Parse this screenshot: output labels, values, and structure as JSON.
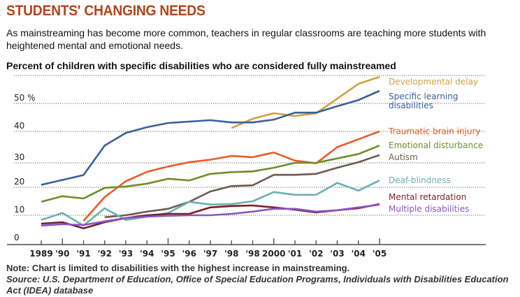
{
  "header": {
    "title": "STUDENTS' CHANGING NEEDS",
    "subtitle": "As mainstreaming has become more common, teachers in regular classrooms are teaching more students with heightened mental and emotional needs.",
    "chart_title": "Percent of children with specific disabilities who are considered fully mainstreamed"
  },
  "footer": {
    "note": "Note: Chart is limited to disabilities with the highest increase in mainstreaming.",
    "source": "Source: U.S. Department of Education, Office of Special Education Programs, Individuals with Disabilities Education Act (IDEA) database"
  },
  "chart_data": {
    "type": "line",
    "title": "Percent of children with specific disabilities who are considered fully mainstreamed",
    "xlabel": "",
    "ylabel": "",
    "categories": [
      "1989",
      "'90",
      "'91",
      "'92",
      "'93",
      "'94",
      "'95",
      "'96",
      "'97",
      "'98",
      "'98",
      "2000",
      "'01",
      "'02",
      "'03",
      "'04",
      "'05"
    ],
    "y_ticks": [
      {
        "value": 0,
        "label": "0"
      },
      {
        "value": 10,
        "label": "10"
      },
      {
        "value": 20,
        "label": "20"
      },
      {
        "value": 30,
        "label": "30"
      },
      {
        "value": 40,
        "label": "40"
      },
      {
        "value": 50,
        "label": "50 %"
      },
      {
        "value": 60,
        "label": ""
      }
    ],
    "ylim": [
      0,
      60
    ],
    "grid": true,
    "legend": "right, inline labels",
    "series": [
      {
        "name": "Developmental delay",
        "color": "#d4a040",
        "values": [
          null,
          null,
          null,
          null,
          null,
          null,
          null,
          null,
          null,
          41.2,
          44.5,
          46.5,
          45.5,
          46.5,
          51.7,
          57,
          59.5
        ]
      },
      {
        "name": "Specific learning disabilities",
        "color": "#3a5f9b",
        "values": [
          21,
          23,
          25,
          35.5,
          39.5,
          41.5,
          43,
          43.5,
          44,
          43.2,
          43.2,
          44.2,
          46.7,
          46.7,
          49,
          51.2,
          54.5
        ]
      },
      {
        "name": "Traumatic brain injury",
        "color": "#ec5a2a",
        "values": [
          null,
          null,
          8,
          16.5,
          22.5,
          26.3,
          28.5,
          30.2,
          31,
          32.2,
          31.8,
          33.3,
          30.7,
          29.8,
          35,
          37.5,
          40
        ]
      },
      {
        "name": "Emotional disturbance",
        "color": "#6b8f2a",
        "values": [
          14.8,
          16.8,
          16,
          19.8,
          20.3,
          21.5,
          23.5,
          22.8,
          25.5,
          26.2,
          26.5,
          28,
          30,
          30,
          31.4,
          32.8,
          35.5
        ]
      },
      {
        "name": "Autism",
        "color": "#6e5a4e",
        "values": [
          null,
          null,
          null,
          9.3,
          10,
          11.3,
          12.3,
          14.8,
          18.5,
          20.5,
          20.8,
          25.1,
          25.1,
          25.5,
          28,
          30.2,
          32.5
        ]
      },
      {
        "name": "Deaf-blindness",
        "color": "#6bb0b0",
        "values": [
          8.3,
          10.8,
          6.3,
          12.5,
          8.3,
          9.5,
          10.8,
          14.8,
          13.8,
          14,
          15,
          18.3,
          17.3,
          17.3,
          21.8,
          18.8,
          22.8
        ]
      },
      {
        "name": "Mental retardation",
        "color": "#7a1c28",
        "values": [
          7,
          7.5,
          5.3,
          7.5,
          9,
          10,
          10.5,
          10.5,
          12.8,
          13.3,
          13.5,
          12.8,
          12,
          11,
          11.8,
          12.5,
          14
        ]
      },
      {
        "name": "Multiple disabilities",
        "color": "#8a55c0",
        "values": [
          6.3,
          6.8,
          6.5,
          7.8,
          9,
          9.5,
          9.8,
          10,
          10,
          10.5,
          11.3,
          12.3,
          12.3,
          11.3,
          11.8,
          12.8,
          13.8
        ]
      }
    ],
    "legend_labels": [
      {
        "lines": [
          "Developmental delay"
        ],
        "color": "#d4a040"
      },
      {
        "lines": [
          "Specific learning",
          "disabilities"
        ],
        "color": "#3a5f9b"
      },
      {
        "lines": [
          "Traumatic brain injury"
        ],
        "color": "#ec5a2a"
      },
      {
        "lines": [
          "Emotional disturbance"
        ],
        "color": "#6b8f2a"
      },
      {
        "lines": [
          "Autism"
        ],
        "color": "#6e5a4e"
      },
      {
        "lines": [
          "Deaf-blindness"
        ],
        "color": "#6bb0b0"
      },
      {
        "lines": [
          "Mental retardation"
        ],
        "color": "#7a1c28"
      },
      {
        "lines": [
          "Multiple disabilities"
        ],
        "color": "#8a55c0"
      }
    ]
  }
}
